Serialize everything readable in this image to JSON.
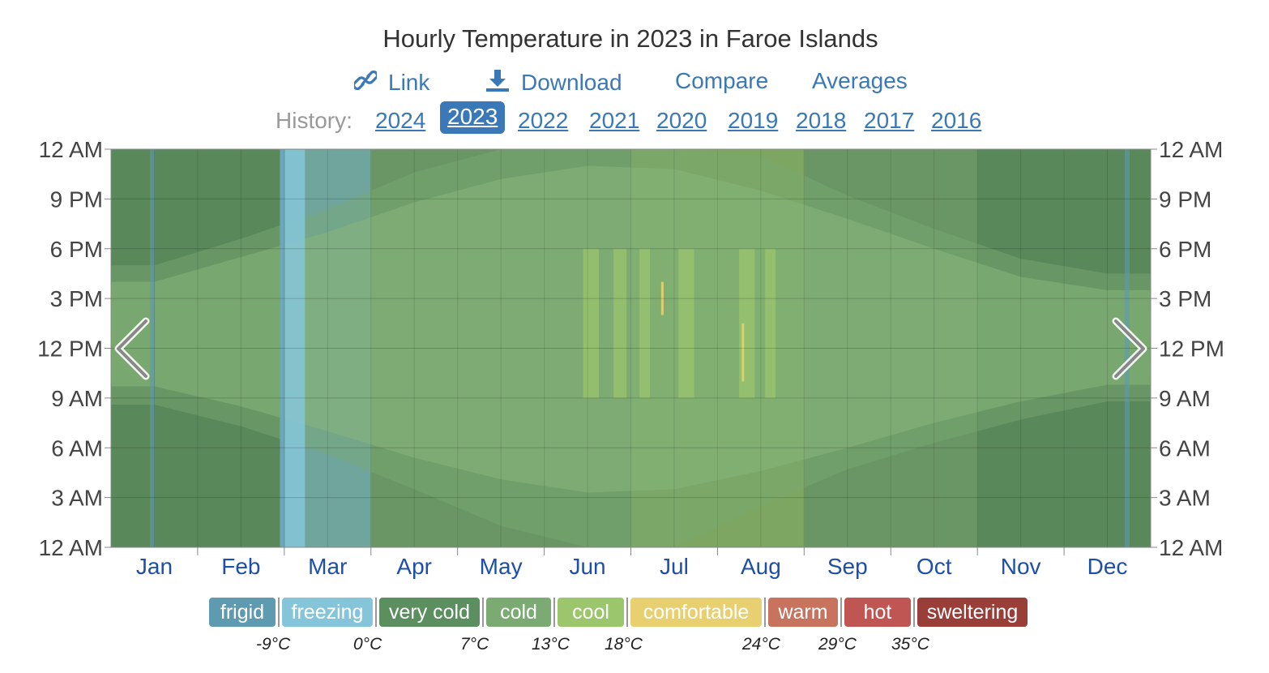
{
  "title": "Hourly Temperature in 2023 in Faroe Islands",
  "nav": {
    "link_label": "Link",
    "download_label": "Download",
    "compare_label": "Compare",
    "averages_label": "Averages",
    "link_icon": "link-icon",
    "download_icon": "download-icon"
  },
  "history": {
    "label": "History:",
    "years": [
      "2024",
      "2023",
      "2022",
      "2021",
      "2020",
      "2019",
      "2018",
      "2017",
      "2016"
    ],
    "selected": "2023"
  },
  "chart_data": {
    "type": "heatmap",
    "title": "Hourly Temperature in 2023 in Faroe Islands",
    "x_categories": [
      "Jan",
      "Feb",
      "Mar",
      "Apr",
      "May",
      "Jun",
      "Jul",
      "Aug",
      "Sep",
      "Oct",
      "Nov",
      "Dec"
    ],
    "y_tick_labels": [
      "12 AM",
      "3 AM",
      "6 AM",
      "9 AM",
      "12 PM",
      "3 PM",
      "6 PM",
      "9 PM",
      "12 AM"
    ],
    "y_range_hours": [
      0,
      24
    ],
    "grid": true,
    "daylight_band_hours": {
      "months": [
        0.5,
        1.5,
        2.5,
        3.5,
        4.5,
        5.5,
        6.5,
        7.5,
        8.5,
        9.5,
        10.5,
        11.5
      ],
      "sunrise": [
        9.7,
        8.5,
        7.0,
        5.4,
        4.1,
        3.3,
        3.5,
        4.6,
        6.0,
        7.5,
        8.8,
        9.8
      ],
      "sunset": [
        16.0,
        17.5,
        19.0,
        20.8,
        22.2,
        23.0,
        22.8,
        21.5,
        19.8,
        18.0,
        16.3,
        15.5
      ]
    },
    "twilight_band_hours": {
      "months": [
        0.5,
        1.5,
        2.5,
        3.5,
        4.5,
        5.5,
        6.5,
        7.5,
        8.5,
        9.5,
        10.5,
        11.5
      ],
      "dawn": [
        8.6,
        7.3,
        5.6,
        3.5,
        1.3,
        0.0,
        0.0,
        2.5,
        4.7,
        6.3,
        7.7,
        8.8
      ],
      "dusk": [
        17.0,
        18.6,
        20.4,
        22.6,
        24.0,
        24.0,
        24.0,
        23.6,
        21.2,
        19.2,
        17.4,
        16.5
      ]
    },
    "category_by_month": [
      "very cold",
      "very cold",
      "freezing",
      "cold",
      "cold",
      "cold",
      "cool",
      "cool",
      "cold",
      "cold",
      "very cold",
      "very cold"
    ],
    "legend": [
      "frigid",
      "freezing",
      "very cold",
      "cold",
      "cool",
      "comfortable",
      "warm",
      "hot",
      "sweltering"
    ],
    "thresholds": [
      "-9°C",
      "0°C",
      "7°C",
      "13°C",
      "18°C",
      "24°C",
      "29°C",
      "35°C"
    ],
    "colors": {
      "frigid": "#5e9ab0",
      "freezing": "#85c5d9",
      "very cold": "#5c8f5f",
      "cold": "#7baa73",
      "cool": "#9cc66c",
      "comfortable": "#e8d070",
      "warm": "#c7735d",
      "hot": "#c05654",
      "sweltering": "#9a3e3a"
    }
  }
}
